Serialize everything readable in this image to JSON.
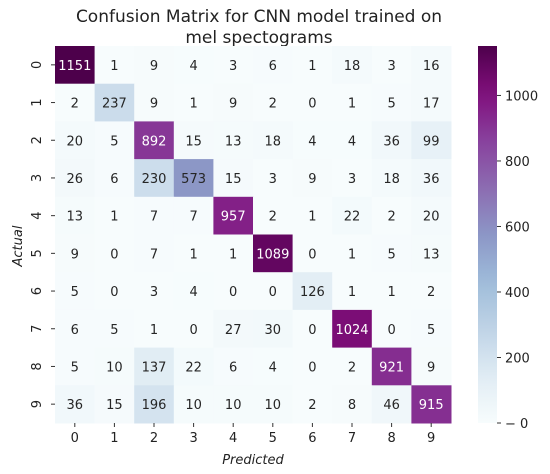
{
  "chart_data": {
    "type": "heatmap",
    "title": "Confusion Matrix for CNN model trained on\nmel spectograms",
    "xlabel": "Predicted",
    "ylabel": "Actual",
    "x_categories": [
      "0",
      "1",
      "2",
      "3",
      "4",
      "5",
      "6",
      "7",
      "8",
      "9"
    ],
    "y_categories": [
      "0",
      "1",
      "2",
      "3",
      "4",
      "5",
      "6",
      "7",
      "8",
      "9"
    ],
    "values": [
      [
        1151,
        1,
        9,
        4,
        3,
        6,
        1,
        18,
        3,
        16
      ],
      [
        2,
        237,
        9,
        1,
        9,
        2,
        0,
        1,
        5,
        17
      ],
      [
        20,
        5,
        892,
        15,
        13,
        18,
        4,
        4,
        36,
        99
      ],
      [
        26,
        6,
        230,
        573,
        15,
        3,
        9,
        3,
        18,
        36
      ],
      [
        13,
        1,
        7,
        7,
        957,
        2,
        1,
        22,
        2,
        20
      ],
      [
        9,
        0,
        7,
        1,
        1,
        1089,
        0,
        1,
        5,
        13
      ],
      [
        5,
        0,
        3,
        4,
        0,
        0,
        126,
        1,
        1,
        2
      ],
      [
        6,
        5,
        1,
        0,
        27,
        30,
        0,
        1024,
        0,
        5
      ],
      [
        5,
        10,
        137,
        22,
        6,
        4,
        0,
        2,
        921,
        9
      ],
      [
        36,
        15,
        196,
        10,
        10,
        10,
        2,
        8,
        46,
        915
      ]
    ],
    "colorscale": "BuPu",
    "color_range": [
      0,
      1151
    ],
    "colorbar_ticks": [
      0,
      200,
      400,
      600,
      800,
      1000
    ],
    "colors": {
      "low": "#f7fcfd",
      "high": "#4d004b",
      "text_dark": "#262626",
      "text_light": "#ffffff"
    }
  }
}
